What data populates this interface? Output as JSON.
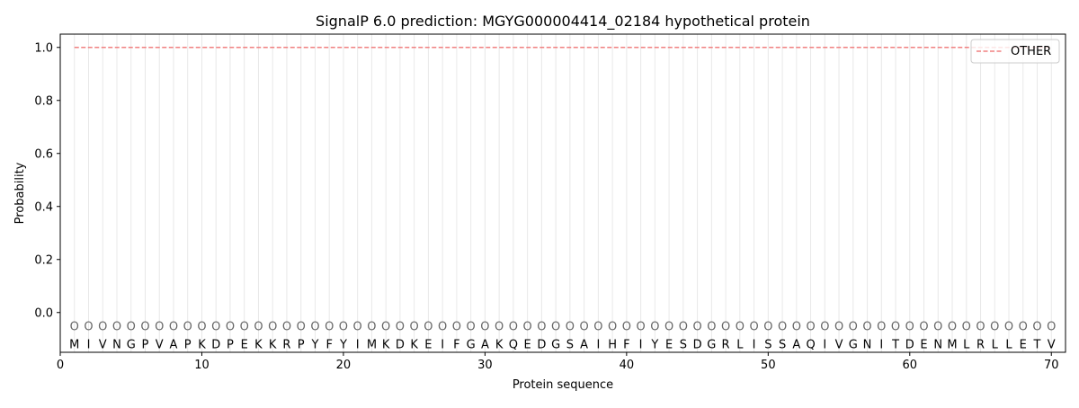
{
  "chart_data": {
    "type": "line",
    "title": "SignalP 6.0 prediction: MGYG000004414_02184 hypothetical protein",
    "xlabel": "Protein sequence",
    "ylabel": "Probability",
    "xlim": [
      0,
      71
    ],
    "ylim": [
      -0.15,
      1.05
    ],
    "xticks": [
      0,
      10,
      20,
      30,
      40,
      50,
      60,
      70
    ],
    "yticks": [
      0.0,
      0.2,
      0.4,
      0.6,
      0.8,
      1.0
    ],
    "ytick_labels": [
      "0.0",
      "0.2",
      "0.4",
      "0.6",
      "0.8",
      "1.0"
    ],
    "sequence": [
      "M",
      "I",
      "V",
      "N",
      "G",
      "P",
      "V",
      "A",
      "P",
      "K",
      "D",
      "P",
      "E",
      "K",
      "K",
      "R",
      "P",
      "Y",
      "F",
      "Y",
      "I",
      "M",
      "K",
      "D",
      "K",
      "E",
      "I",
      "F",
      "G",
      "A",
      "K",
      "Q",
      "E",
      "D",
      "G",
      "S",
      "A",
      "I",
      "H",
      "F",
      "I",
      "Y",
      "E",
      "S",
      "D",
      "G",
      "R",
      "L",
      "I",
      "S",
      "S",
      "A",
      "Q",
      "I",
      "V",
      "G",
      "N",
      "I",
      "T",
      "D",
      "E",
      "N",
      "M",
      "L",
      "R",
      "L",
      "L",
      "E",
      "T",
      "V"
    ],
    "region_label": "O",
    "series": [
      {
        "name": "OTHER",
        "color": "#f08080",
        "style": "dashed",
        "x_range": [
          1,
          70
        ],
        "value": 1.0
      }
    ],
    "legend_position": "top-right",
    "grid": "vertical lines at each residue"
  }
}
